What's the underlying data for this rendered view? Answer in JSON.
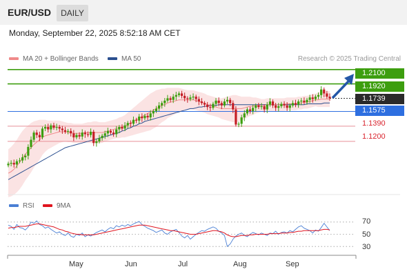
{
  "header": {
    "symbol": "EUR/USD",
    "timeframe_tab": "DAILY"
  },
  "timestamp": "Monday, September 22, 2025 8:52:18 AM CET",
  "legend": {
    "items": [
      {
        "label": "MA 20 + Bollinger Bands",
        "color": "#f08a8a"
      },
      {
        "label": "MA 50",
        "color": "#2b4f8f"
      }
    ],
    "credit": "Research © 2025 Trading Central"
  },
  "rsi_legend": {
    "items": [
      {
        "label": "RSI",
        "color": "#4a7fd4"
      },
      {
        "label": "9MA",
        "color": "#e0141e"
      }
    ]
  },
  "colors": {
    "resistance": "#3d9e0f",
    "pivot": "#2e6fe0",
    "support": "#d9232d",
    "current": "#2a2a2a",
    "arrow": "#2457a7"
  },
  "chart_data": [
    {
      "type": "candlestick",
      "title": "EUR/USD DAILY",
      "x_months": [
        "May",
        "Jun",
        "Jul",
        "Aug",
        "Sep"
      ],
      "ylim": [
        1.055,
        1.215
      ],
      "levels": [
        {
          "value": "1.2100",
          "kind": "resistance"
        },
        {
          "value": "1.1920",
          "kind": "resistance"
        },
        {
          "value": "1.1739",
          "kind": "current"
        },
        {
          "value": "1.1575",
          "kind": "pivot"
        },
        {
          "value": "1.1390",
          "kind": "support"
        },
        {
          "value": "1.1200",
          "kind": "support"
        }
      ],
      "close_series": [
        1.092,
        1.093,
        1.091,
        1.095,
        1.096,
        1.1,
        1.102,
        1.113,
        1.122,
        1.131,
        1.128,
        1.125,
        1.136,
        1.138,
        1.135,
        1.14,
        1.137,
        1.138,
        1.136,
        1.134,
        1.132,
        1.133,
        1.13,
        1.125,
        1.128,
        1.126,
        1.131,
        1.129,
        1.128,
        1.132,
        1.118,
        1.12,
        1.124,
        1.127,
        1.13,
        1.133,
        1.131,
        1.129,
        1.135,
        1.138,
        1.136,
        1.14,
        1.143,
        1.142,
        1.147,
        1.146,
        1.151,
        1.149,
        1.152,
        1.15,
        1.155,
        1.158,
        1.161,
        1.165,
        1.168,
        1.171,
        1.174,
        1.172,
        1.176,
        1.178,
        1.18,
        1.177,
        1.174,
        1.173,
        1.175,
        1.176,
        1.173,
        1.17,
        1.168,
        1.166,
        1.163,
        1.162,
        1.167,
        1.171,
        1.168,
        1.165,
        1.17,
        1.172,
        1.168,
        1.16,
        1.141,
        1.142,
        1.15,
        1.155,
        1.16,
        1.158,
        1.162,
        1.165,
        1.163,
        1.164,
        1.16,
        1.166,
        1.17,
        1.165,
        1.162,
        1.164,
        1.167,
        1.165,
        1.162,
        1.165,
        1.168,
        1.166,
        1.17,
        1.171,
        1.169,
        1.172,
        1.175,
        1.173,
        1.176,
        1.178,
        1.185,
        1.18,
        1.176,
        1.174
      ],
      "ma20_series": [
        1.08,
        1.082,
        1.085,
        1.089,
        1.094,
        1.099,
        1.104,
        1.108,
        1.112,
        1.116,
        1.119,
        1.122,
        1.125,
        1.127,
        1.128,
        1.129,
        1.13,
        1.131,
        1.132,
        1.132,
        1.132,
        1.131,
        1.131,
        1.13,
        1.13,
        1.13,
        1.13,
        1.131,
        1.131,
        1.131,
        1.131,
        1.131,
        1.131,
        1.131,
        1.132,
        1.133,
        1.134,
        1.135,
        1.136,
        1.137,
        1.138,
        1.139,
        1.141,
        1.143,
        1.145,
        1.147,
        1.149,
        1.151,
        1.153,
        1.155,
        1.157,
        1.159,
        1.161,
        1.163,
        1.165,
        1.166,
        1.168,
        1.169,
        1.17,
        1.171,
        1.172,
        1.172,
        1.172,
        1.172,
        1.172,
        1.172,
        1.171,
        1.17,
        1.169,
        1.168,
        1.166,
        1.165,
        1.164,
        1.163,
        1.162,
        1.161,
        1.161,
        1.161,
        1.161,
        1.161,
        1.161,
        1.161,
        1.161,
        1.162,
        1.163,
        1.164,
        1.164,
        1.165,
        1.165,
        1.165,
        1.165,
        1.166,
        1.166,
        1.166,
        1.166,
        1.166,
        1.166,
        1.166,
        1.167,
        1.167,
        1.167,
        1.167,
        1.168,
        1.168,
        1.169,
        1.169,
        1.17,
        1.171,
        1.172,
        1.172,
        1.173,
        1.173,
        1.173,
        1.173
      ],
      "ma50_series": [
        1.072,
        1.074,
        1.076,
        1.078,
        1.08,
        1.082,
        1.084,
        1.086,
        1.088,
        1.09,
        1.092,
        1.094,
        1.096,
        1.098,
        1.1,
        1.102,
        1.104,
        1.106,
        1.108,
        1.11,
        1.112,
        1.113,
        1.114,
        1.115,
        1.116,
        1.117,
        1.118,
        1.119,
        1.12,
        1.121,
        1.122,
        1.123,
        1.124,
        1.125,
        1.126,
        1.127,
        1.128,
        1.129,
        1.13,
        1.131,
        1.133,
        1.134,
        1.136,
        1.137,
        1.139,
        1.14,
        1.142,
        1.143,
        1.145,
        1.146,
        1.147,
        1.148,
        1.149,
        1.15,
        1.151,
        1.152,
        1.153,
        1.154,
        1.155,
        1.156,
        1.157,
        1.158,
        1.159,
        1.16,
        1.161,
        1.161,
        1.162,
        1.163,
        1.163,
        1.164,
        1.164,
        1.165,
        1.165,
        1.165,
        1.166,
        1.166,
        1.166,
        1.166,
        1.166,
        1.166,
        1.166,
        1.166,
        1.166,
        1.166,
        1.166,
        1.166,
        1.166,
        1.166,
        1.166,
        1.166,
        1.166,
        1.166,
        1.166,
        1.166,
        1.166,
        1.166,
        1.166,
        1.166,
        1.166,
        1.166,
        1.166,
        1.166,
        1.166,
        1.166,
        1.166,
        1.167,
        1.167,
        1.167,
        1.167,
        1.167,
        1.167,
        1.168,
        1.168,
        1.168
      ],
      "bb_width": [
        0.03,
        0.031,
        0.032,
        0.033,
        0.034,
        0.034,
        0.033,
        0.032,
        0.031,
        0.029,
        0.027,
        0.025,
        0.022,
        0.02,
        0.018,
        0.017,
        0.016,
        0.015,
        0.014,
        0.013,
        0.012,
        0.012,
        0.012,
        0.012,
        0.012,
        0.012,
        0.012,
        0.012,
        0.013,
        0.013,
        0.014,
        0.014,
        0.013,
        0.013,
        0.012,
        0.012,
        0.012,
        0.012,
        0.012,
        0.013,
        0.013,
        0.014,
        0.015,
        0.016,
        0.017,
        0.018,
        0.019,
        0.02,
        0.021,
        0.022,
        0.023,
        0.023,
        0.023,
        0.022,
        0.021,
        0.02,
        0.019,
        0.018,
        0.017,
        0.016,
        0.015,
        0.014,
        0.013,
        0.012,
        0.012,
        0.012,
        0.012,
        0.012,
        0.012,
        0.012,
        0.012,
        0.012,
        0.012,
        0.012,
        0.012,
        0.013,
        0.014,
        0.015,
        0.016,
        0.017,
        0.017,
        0.016,
        0.015,
        0.014,
        0.013,
        0.012,
        0.011,
        0.01,
        0.009,
        0.008,
        0.008,
        0.008,
        0.008,
        0.008,
        0.008,
        0.008,
        0.008,
        0.008,
        0.008,
        0.008,
        0.008,
        0.008,
        0.008,
        0.008,
        0.008,
        0.008,
        0.008,
        0.008,
        0.008,
        0.009,
        0.01,
        0.01,
        0.01,
        0.01
      ]
    },
    {
      "type": "line",
      "title": "RSI",
      "ylim": [
        20,
        80
      ],
      "yticks": [
        "70",
        "50",
        "30"
      ],
      "series": [
        {
          "name": "RSI",
          "values": [
            65,
            63,
            58,
            66,
            61,
            60,
            57,
            62,
            70,
            68,
            72,
            66,
            64,
            60,
            62,
            58,
            55,
            52,
            54,
            50,
            48,
            52,
            47,
            45,
            50,
            48,
            52,
            46,
            49,
            47,
            50,
            53,
            55,
            57,
            54,
            58,
            61,
            59,
            64,
            62,
            65,
            63,
            66,
            64,
            67,
            69,
            71,
            66,
            63,
            60,
            58,
            56,
            53,
            55,
            57,
            52,
            50,
            54,
            56,
            58,
            53,
            47,
            44,
            48,
            42,
            46,
            50,
            53,
            56,
            55,
            58,
            60,
            62,
            60,
            55,
            52,
            48,
            30,
            34,
            42,
            47,
            50,
            52,
            48,
            46,
            50,
            53,
            51,
            49,
            52,
            50,
            48,
            52,
            51,
            55,
            50,
            53,
            54,
            52,
            56,
            54,
            58,
            62,
            64,
            60,
            58,
            56,
            52,
            57,
            55,
            61,
            68,
            62,
            56
          ]
        },
        {
          "name": "9MA",
          "values": [
            60,
            61,
            61,
            62,
            63,
            63,
            63,
            64,
            65,
            66,
            67,
            67,
            66,
            65,
            64,
            63,
            62,
            60,
            58,
            57,
            55,
            54,
            52,
            51,
            50,
            50,
            49,
            49,
            49,
            49,
            49,
            50,
            51,
            52,
            53,
            54,
            55,
            56,
            57,
            58,
            59,
            60,
            61,
            62,
            63,
            64,
            65,
            65,
            65,
            64,
            63,
            62,
            61,
            60,
            59,
            58,
            57,
            56,
            56,
            55,
            54,
            53,
            52,
            51,
            50,
            50,
            50,
            51,
            52,
            53,
            54,
            55,
            56,
            56,
            55,
            54,
            52,
            49,
            47,
            46,
            46,
            47,
            48,
            48,
            48,
            49,
            49,
            50,
            50,
            50,
            50,
            50,
            51,
            51,
            51,
            51,
            52,
            52,
            52,
            53,
            53,
            54,
            55,
            55,
            56,
            56,
            56,
            56,
            56,
            56,
            57,
            58,
            58,
            57
          ]
        }
      ]
    }
  ]
}
